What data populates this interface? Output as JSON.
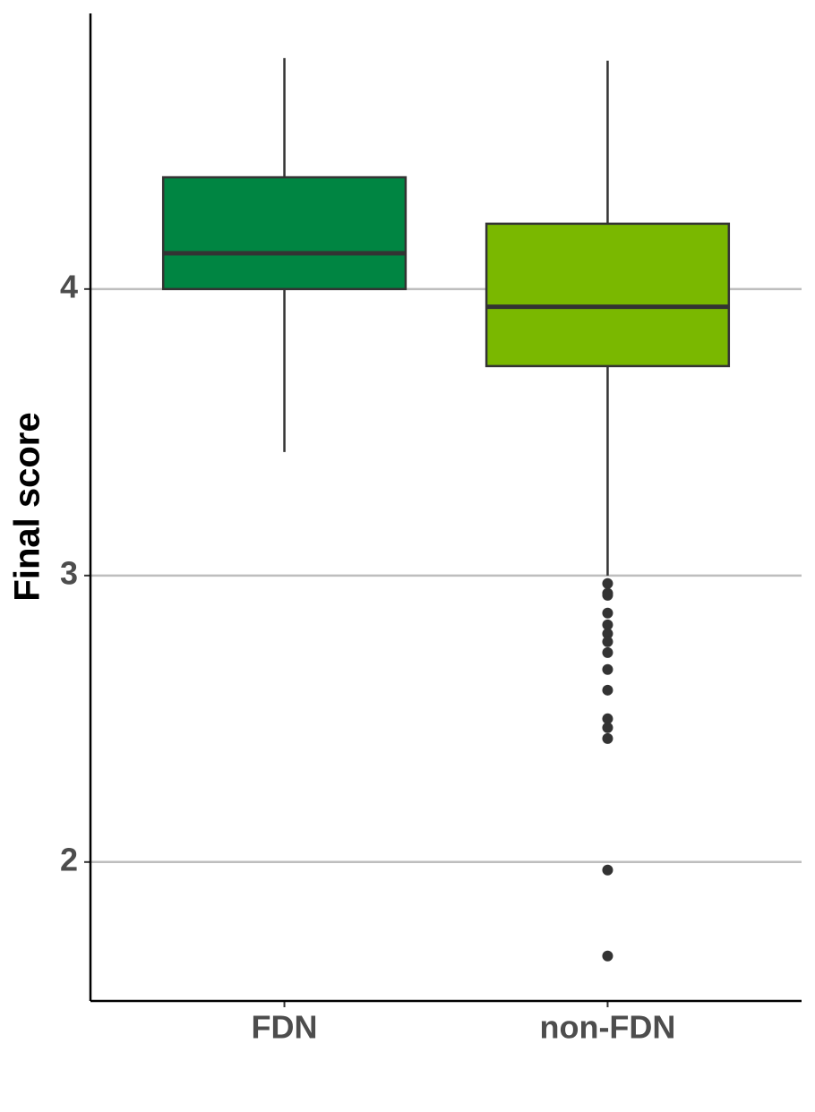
{
  "chart_data": {
    "type": "box",
    "ylabel": "Final score",
    "categories": [
      "FDN",
      "non-FDN"
    ],
    "colors": [
      "#008542",
      "#7ab800"
    ],
    "boxes": [
      {
        "min": 3.431,
        "q1": 4.0,
        "median": 4.125,
        "q3": 4.39,
        "max": 4.806,
        "outliers": []
      },
      {
        "min": 3.0,
        "q1": 3.731,
        "median": 3.938,
        "q3": 4.228,
        "max": 4.797,
        "outliers": [
          2.972,
          2.938,
          2.931,
          2.869,
          2.828,
          2.797,
          2.769,
          2.731,
          2.672,
          2.6,
          2.5,
          2.469,
          2.431,
          1.972,
          1.672
        ]
      }
    ],
    "ylim": [
      1.515,
      4.962
    ],
    "yticks": [
      2,
      3,
      4
    ],
    "grid": true
  }
}
